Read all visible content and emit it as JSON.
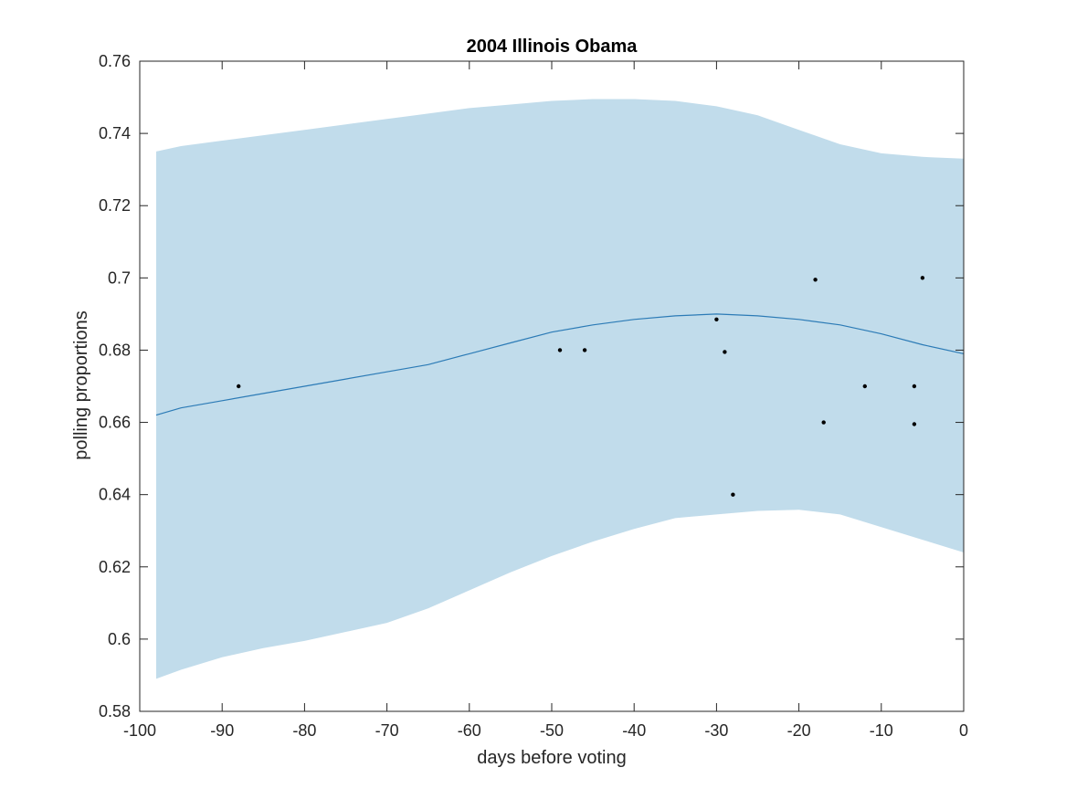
{
  "chart_data": {
    "type": "line",
    "title": "2004 Illinois Obama",
    "xlabel": "days before voting",
    "ylabel": "polling proportions",
    "xlim": [
      -100,
      0
    ],
    "ylim": [
      0.58,
      0.76
    ],
    "xticks": [
      -100,
      -90,
      -80,
      -70,
      -60,
      -50,
      -40,
      -30,
      -20,
      -10,
      0
    ],
    "xtick_labels": [
      "-100",
      "-90",
      "-80",
      "-70",
      "-60",
      "-50",
      "-40",
      "-30",
      "-20",
      "-10",
      "0"
    ],
    "yticks": [
      0.58,
      0.6,
      0.62,
      0.64,
      0.66,
      0.68,
      0.7,
      0.72,
      0.74,
      0.76
    ],
    "ytick_labels": [
      "0.58",
      "0.6",
      "0.62",
      "0.64",
      "0.66",
      "0.68",
      "0.7",
      "0.72",
      "0.74",
      "0.76"
    ],
    "grid": false,
    "colors": {
      "band": "#c1dceb",
      "line": "#2c7bb6",
      "points": "#000000",
      "axes": "#262626"
    },
    "band": {
      "x": [
        -98,
        -95,
        -90,
        -85,
        -80,
        -75,
        -70,
        -65,
        -60,
        -55,
        -50,
        -45,
        -40,
        -35,
        -30,
        -25,
        -20,
        -15,
        -10,
        -5,
        0
      ],
      "upper": [
        0.735,
        0.7365,
        0.738,
        0.7395,
        0.741,
        0.7425,
        0.744,
        0.7455,
        0.747,
        0.748,
        0.749,
        0.7495,
        0.7495,
        0.749,
        0.7475,
        0.745,
        0.741,
        0.737,
        0.7345,
        0.7335,
        0.733
      ],
      "lower": [
        0.589,
        0.5915,
        0.595,
        0.5975,
        0.5995,
        0.602,
        0.6045,
        0.6085,
        0.6135,
        0.6185,
        0.623,
        0.627,
        0.6305,
        0.6335,
        0.6345,
        0.6355,
        0.6358,
        0.6345,
        0.631,
        0.6275,
        0.624
      ]
    },
    "series": [
      {
        "x": [
          -98,
          -95,
          -90,
          -85,
          -80,
          -75,
          -70,
          -65,
          -60,
          -55,
          -50,
          -45,
          -40,
          -35,
          -30,
          -25,
          -20,
          -15,
          -10,
          -5,
          0
        ],
        "values": [
          0.662,
          0.664,
          0.666,
          0.668,
          0.67,
          0.672,
          0.674,
          0.676,
          0.679,
          0.682,
          0.685,
          0.687,
          0.6885,
          0.6895,
          0.69,
          0.6895,
          0.6885,
          0.687,
          0.6845,
          0.6815,
          0.679
        ]
      }
    ],
    "points": [
      {
        "x": -88,
        "y": 0.67
      },
      {
        "x": -49,
        "y": 0.68
      },
      {
        "x": -46,
        "y": 0.68
      },
      {
        "x": -30,
        "y": 0.6885
      },
      {
        "x": -29,
        "y": 0.6795
      },
      {
        "x": -28,
        "y": 0.64
      },
      {
        "x": -18,
        "y": 0.6995
      },
      {
        "x": -17,
        "y": 0.66
      },
      {
        "x": -12,
        "y": 0.67
      },
      {
        "x": -6,
        "y": 0.67
      },
      {
        "x": -6,
        "y": 0.6595
      },
      {
        "x": -5,
        "y": 0.7
      }
    ]
  }
}
